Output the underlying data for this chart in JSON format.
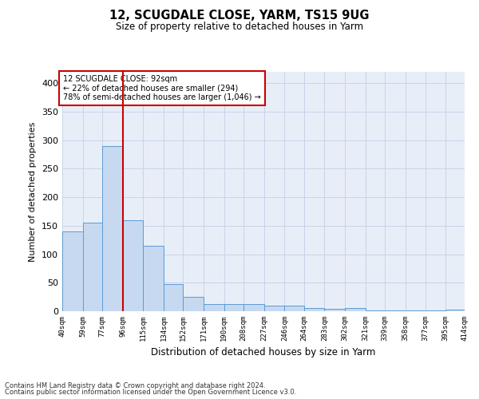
{
  "title": "12, SCUGDALE CLOSE, YARM, TS15 9UG",
  "subtitle": "Size of property relative to detached houses in Yarm",
  "xlabel": "Distribution of detached houses by size in Yarm",
  "ylabel": "Number of detached properties",
  "bar_left_edges": [
    40,
    59,
    77,
    96,
    115,
    134,
    152,
    171,
    190,
    208,
    227,
    246,
    264,
    283,
    302,
    321,
    339,
    358,
    377,
    395
  ],
  "bar_heights": [
    140,
    155,
    290,
    160,
    115,
    47,
    25,
    13,
    13,
    13,
    10,
    10,
    5,
    4,
    5,
    2,
    2,
    1,
    1,
    3
  ],
  "bin_labels": [
    "40sqm",
    "59sqm",
    "77sqm",
    "96sqm",
    "115sqm",
    "134sqm",
    "152sqm",
    "171sqm",
    "190sqm",
    "208sqm",
    "227sqm",
    "246sqm",
    "264sqm",
    "283sqm",
    "302sqm",
    "321sqm",
    "339sqm",
    "358sqm",
    "377sqm",
    "395sqm",
    "414sqm"
  ],
  "bar_color": "#c6d9f0",
  "bar_edge_color": "#5b9bd5",
  "grid_color": "#c8d4e8",
  "bg_color": "#e8eef8",
  "property_line_x": 96,
  "property_line_color": "#cc0000",
  "annotation_text": "12 SCUGDALE CLOSE: 92sqm\n← 22% of detached houses are smaller (294)\n78% of semi-detached houses are larger (1,046) →",
  "annotation_box_color": "#cc0000",
  "ylim": [
    0,
    420
  ],
  "yticks": [
    0,
    50,
    100,
    150,
    200,
    250,
    300,
    350,
    400
  ],
  "footnote1": "Contains HM Land Registry data © Crown copyright and database right 2024.",
  "footnote2": "Contains public sector information licensed under the Open Government Licence v3.0."
}
